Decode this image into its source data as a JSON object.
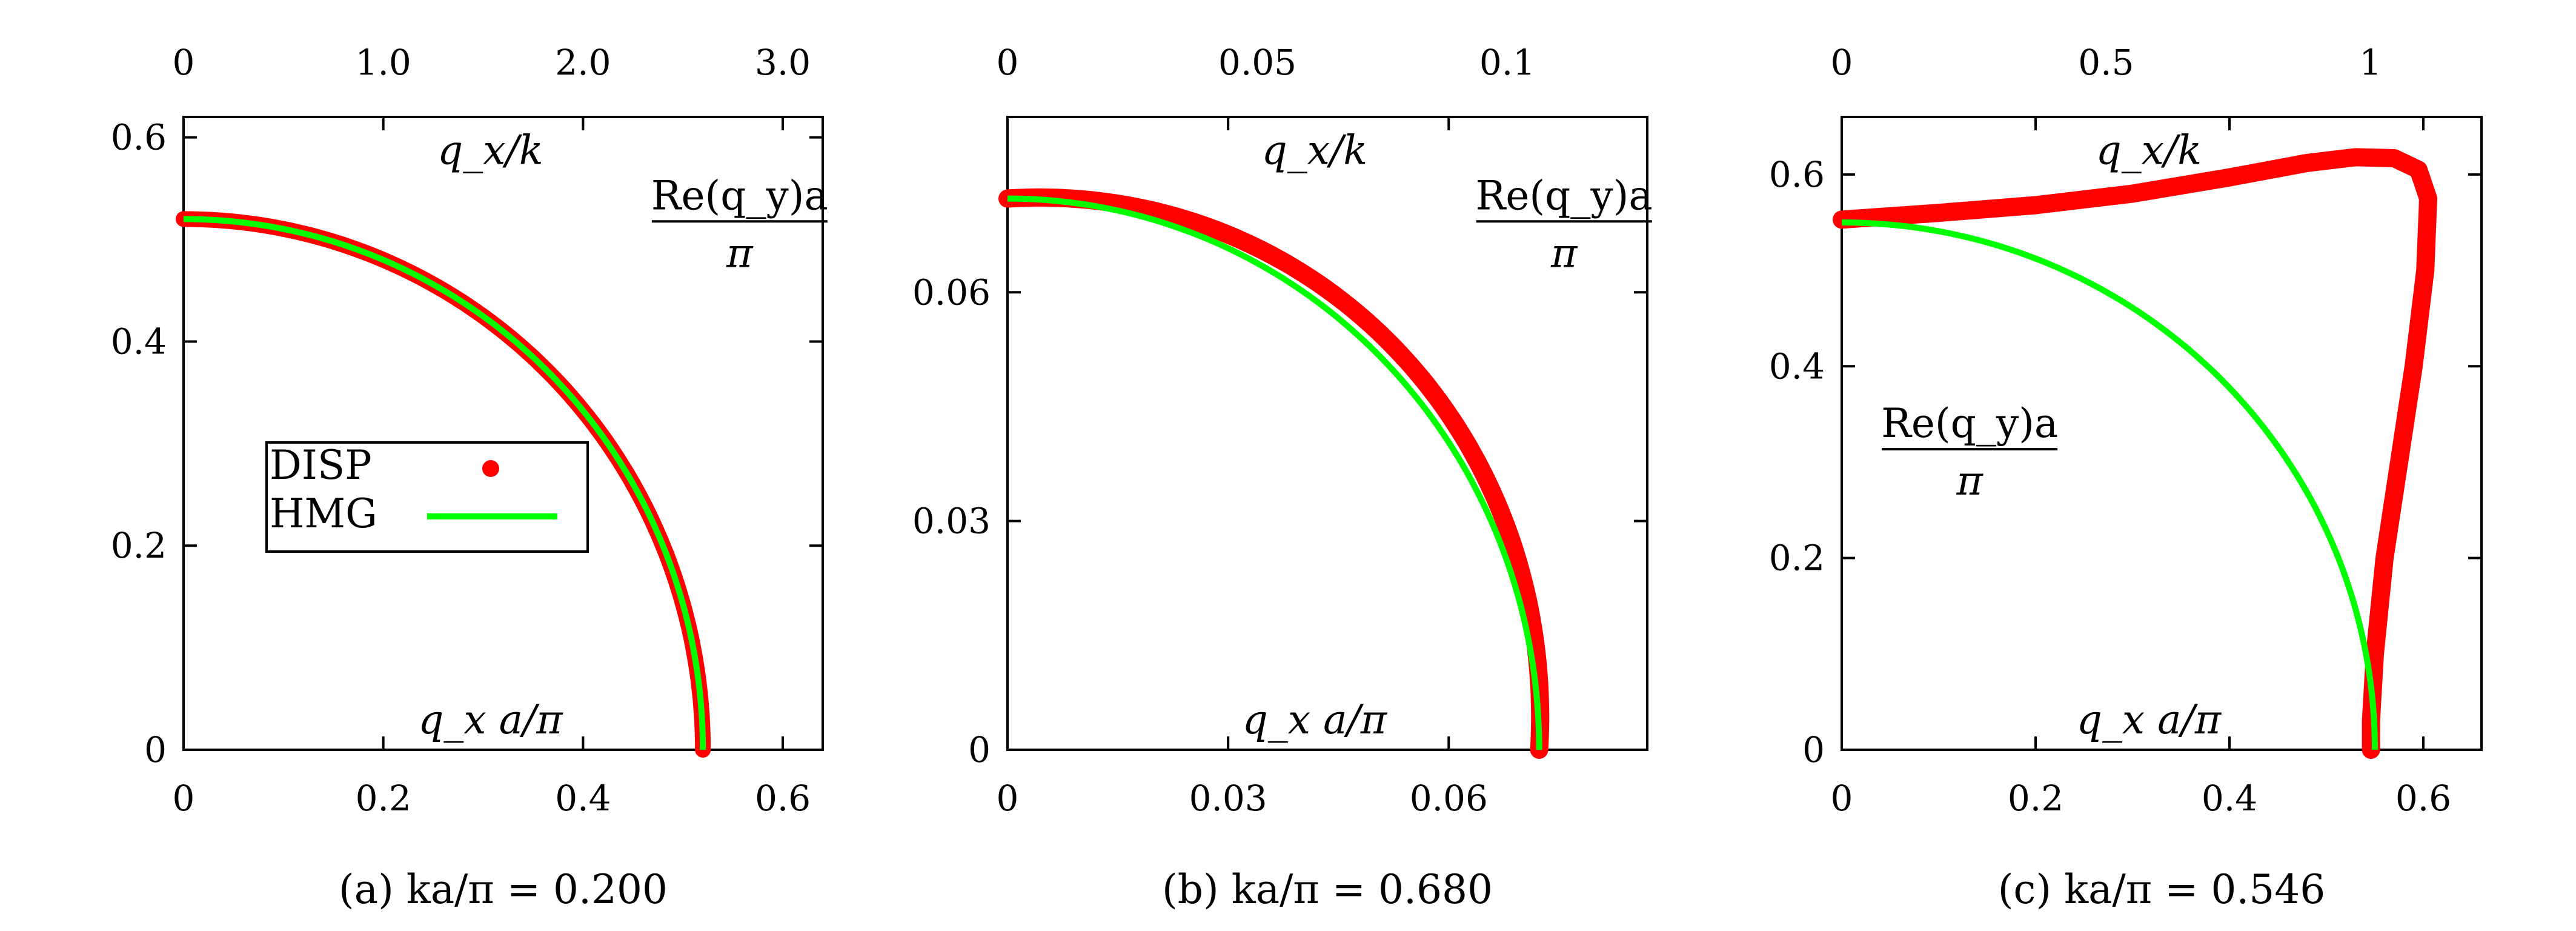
{
  "chart_data": [
    {
      "type": "line",
      "caption": "(a) ka/π = 0.200",
      "annotations": {
        "top_axis": "q_x/k",
        "bottom_axis": "q_x a/π",
        "y_label_num": "Re(q_y)a",
        "y_label_den": "π"
      },
      "x_ticks": [
        "0",
        "0.2",
        "0.4",
        "0.6"
      ],
      "y_ticks": [
        "0",
        "0.2",
        "0.4",
        "0.6"
      ],
      "top_ticks": [
        "0",
        "1.0",
        "2.0",
        "3.0"
      ],
      "xlim": [
        0,
        0.64
      ],
      "ylim": [
        0,
        0.62
      ],
      "top_lim": [
        0,
        3.2
      ],
      "legend": {
        "position": "center-left",
        "entries": [
          "DISP",
          "HMG"
        ]
      },
      "series": [
        {
          "name": "DISP",
          "kind": "points",
          "color": "#ff0000",
          "shape": "quarter-circle",
          "radius": 0.52,
          "x_end": 0.52,
          "y0": 0.52
        },
        {
          "name": "HMG",
          "kind": "line",
          "color": "#00ff00",
          "shape": "quarter-circle",
          "radius": 0.52
        }
      ]
    },
    {
      "type": "line",
      "caption": "(b) ka/π = 0.680",
      "annotations": {
        "top_axis": "q_x/k",
        "bottom_axis": "q_x a/π",
        "y_label_num": "Re(q_y)a",
        "y_label_den": "π"
      },
      "x_ticks": [
        "0",
        "0.03",
        "0.06"
      ],
      "y_ticks": [
        "0",
        "0.03",
        "0.06"
      ],
      "top_ticks": [
        "0",
        "0.05",
        "0.1"
      ],
      "xlim": [
        0,
        0.087
      ],
      "ylim": [
        0,
        0.083
      ],
      "top_lim": [
        0,
        0.128
      ],
      "series": [
        {
          "name": "DISP",
          "kind": "points",
          "color": "#ff0000",
          "shape": "bulged-quarter-circle",
          "radius": 0.0723,
          "bulge": 0.0022
        },
        {
          "name": "HMG",
          "kind": "line",
          "color": "#00ff00",
          "shape": "quarter-circle",
          "radius": 0.0723
        }
      ]
    },
    {
      "type": "line",
      "caption": "(c) ka/π = 0.546",
      "annotations": {
        "top_axis": "q_x/k",
        "bottom_axis": "q_x a/π",
        "y_label_num": "Re(q_y)a",
        "y_label_den": "π"
      },
      "x_ticks": [
        "0",
        "0.2",
        "0.4",
        "0.6"
      ],
      "y_ticks": [
        "0",
        "0.2",
        "0.4",
        "0.6"
      ],
      "top_ticks": [
        "0",
        "0.5",
        "1"
      ],
      "xlim": [
        0,
        0.66
      ],
      "ylim": [
        0,
        0.66
      ],
      "top_lim": [
        0,
        1.21
      ],
      "series": [
        {
          "name": "DISP",
          "kind": "points",
          "color": "#ff0000",
          "x": [
            0,
            0.1,
            0.2,
            0.3,
            0.4,
            0.48,
            0.53,
            0.57,
            0.595,
            0.605,
            0.602,
            0.59,
            0.575,
            0.56,
            0.55,
            0.546,
            0.546
          ],
          "y": [
            0.553,
            0.56,
            0.568,
            0.58,
            0.597,
            0.612,
            0.618,
            0.617,
            0.605,
            0.575,
            0.5,
            0.4,
            0.3,
            0.2,
            0.1,
            0.03,
            0
          ]
        },
        {
          "name": "HMG",
          "kind": "line",
          "color": "#00ff00",
          "shape": "quarter-circle",
          "radius": 0.55
        }
      ]
    }
  ]
}
